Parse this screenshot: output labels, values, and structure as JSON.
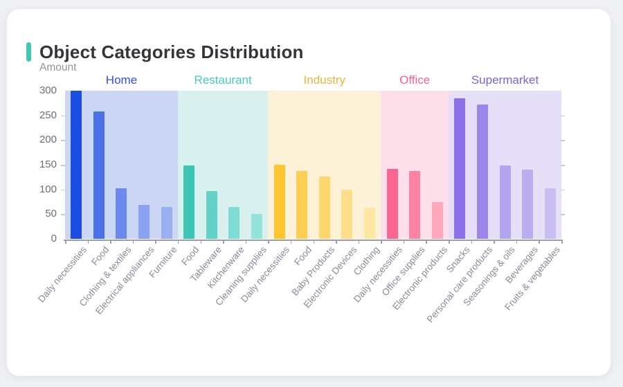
{
  "page": {
    "background": "#eef0f3",
    "card_background": "#ffffff"
  },
  "header": {
    "title": "Object Categories Distribution",
    "accent_color": "#41c6b4",
    "title_color": "#32363b"
  },
  "chart_data": {
    "type": "bar",
    "title": "Object Categories Distribution",
    "ylabel": "Amount",
    "xlabel": "",
    "ylim": [
      0,
      300
    ],
    "yticks": [
      0,
      50,
      100,
      150,
      200,
      250,
      300
    ],
    "grid": false,
    "legend_position": "none",
    "x_label_rotation": -50,
    "axis_color": "#9b9ea4",
    "groups": [
      {
        "name": "Home",
        "label_color": "#2b50dd",
        "band_color": "#ccd7f6",
        "bars": [
          {
            "label": "Daily necessities",
            "value": 300,
            "color": "#1d4ee2"
          },
          {
            "label": "Food",
            "value": 258,
            "color": "#4a71e8"
          },
          {
            "label": "Clothing & textiles",
            "value": 103,
            "color": "#6b8aee"
          },
          {
            "label": "Electrical appliances",
            "value": 69,
            "color": "#8ba2f1"
          },
          {
            "label": "Furniture",
            "value": 64,
            "color": "#9aaff2"
          }
        ]
      },
      {
        "name": "Restaurant",
        "label_color": "#45cbbb",
        "band_color": "#d9f1ee",
        "bars": [
          {
            "label": "Food",
            "value": 148,
            "color": "#3ec6b4"
          },
          {
            "label": "Tableware",
            "value": 97,
            "color": "#62d2c6"
          },
          {
            "label": "Kitchenware",
            "value": 65,
            "color": "#80dcd2"
          },
          {
            "label": "Cleaning supplies",
            "value": 51,
            "color": "#94e2d9"
          }
        ]
      },
      {
        "name": "Industry",
        "label_color": "#e9b43a",
        "band_color": "#fdf2d7",
        "bars": [
          {
            "label": "Daily necessities",
            "value": 150,
            "color": "#fdc52f"
          },
          {
            "label": "Food",
            "value": 138,
            "color": "#fdd055"
          },
          {
            "label": "Baby Products",
            "value": 126,
            "color": "#fdd76b"
          },
          {
            "label": "Electronic Devices",
            "value": 100,
            "color": "#fede8a"
          },
          {
            "label": "Clothing",
            "value": 63,
            "color": "#fee6a3"
          }
        ]
      },
      {
        "name": "Office",
        "label_color": "#f4618e",
        "band_color": "#fcdfe9",
        "bars": [
          {
            "label": "Daily necessities",
            "value": 142,
            "color": "#fb6690"
          },
          {
            "label": "Office supplies",
            "value": 138,
            "color": "#fc84a2"
          },
          {
            "label": "Electronic products",
            "value": 75,
            "color": "#fda6bc"
          }
        ]
      },
      {
        "name": "Supermarket",
        "label_color": "#7a63da",
        "band_color": "#e5dff8",
        "bars": [
          {
            "label": "Snacks",
            "value": 285,
            "color": "#8a70e8"
          },
          {
            "label": "Personal care products",
            "value": 272,
            "color": "#9d86ea"
          },
          {
            "label": "Seasonings & oils",
            "value": 148,
            "color": "#b4a4ef"
          },
          {
            "label": "Beverages",
            "value": 140,
            "color": "#bcadf1"
          },
          {
            "label": "Fruits & vegetables",
            "value": 102,
            "color": "#c9bdf3"
          }
        ]
      }
    ]
  }
}
